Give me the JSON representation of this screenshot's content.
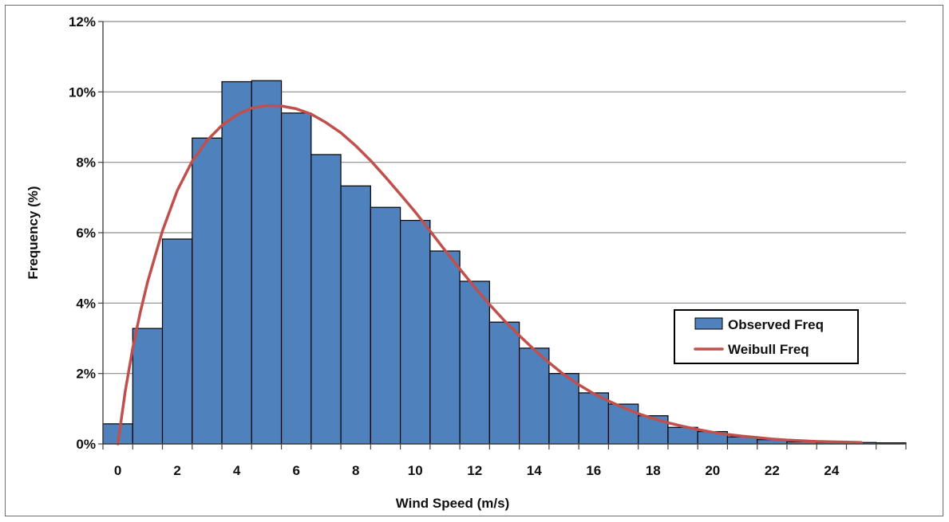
{
  "chart_data": {
    "type": "bar",
    "title": "",
    "xlabel": "Wind Speed (m/s)",
    "ylabel": "Frequency (%)",
    "xlim": [
      -0.5,
      26.5
    ],
    "ylim": [
      0,
      12
    ],
    "y_ticks": [
      0,
      2,
      4,
      6,
      8,
      10,
      12
    ],
    "y_tick_labels": [
      "0%",
      "2%",
      "4%",
      "6%",
      "8%",
      "10%",
      "12%"
    ],
    "x_ticks": [
      0,
      2,
      4,
      6,
      8,
      10,
      12,
      14,
      16,
      18,
      20,
      22,
      24
    ],
    "x_tick_labels": [
      "0",
      "2",
      "4",
      "6",
      "8",
      "10",
      "12",
      "14",
      "16",
      "18",
      "20",
      "22",
      "24"
    ],
    "grid": "horizontal",
    "legend_position": "right",
    "categories": [
      "0",
      "1",
      "2",
      "3",
      "4",
      "5",
      "6",
      "7",
      "8",
      "9",
      "10",
      "11",
      "12",
      "13",
      "14",
      "15",
      "16",
      "17",
      "18",
      "19",
      "20",
      "21",
      "22",
      "23",
      "24",
      "25",
      "26"
    ],
    "series": [
      {
        "name": "Observed Freq",
        "type": "bar",
        "color": "#4f81bd",
        "values": [
          0.57,
          3.28,
          5.82,
          8.69,
          10.29,
          10.32,
          9.4,
          8.22,
          7.33,
          6.72,
          6.35,
          5.48,
          4.62,
          3.46,
          2.72,
          2.0,
          1.45,
          1.13,
          0.8,
          0.47,
          0.35,
          0.2,
          0.12,
          0.06,
          0.04,
          0.04,
          0.03
        ]
      },
      {
        "name": "Weibull Freq",
        "type": "line",
        "color": "#c0504d",
        "x": [
          0,
          0.25,
          0.5,
          0.75,
          1,
          1.5,
          2,
          2.5,
          3,
          3.5,
          4,
          4.5,
          5,
          5.5,
          6,
          6.5,
          7,
          7.5,
          8,
          8.5,
          9,
          9.5,
          10,
          10.5,
          11,
          11.5,
          12,
          12.5,
          13,
          13.5,
          14,
          14.5,
          15,
          15.5,
          16,
          16.5,
          17,
          17.5,
          18,
          18.5,
          19,
          19.5,
          20,
          20.5,
          21,
          21.5,
          22,
          22.5,
          23,
          23.5,
          24,
          24.5,
          25
        ],
        "y": [
          0.0,
          1.5,
          2.72,
          3.72,
          4.6,
          6.05,
          7.2,
          8.03,
          8.62,
          9.05,
          9.35,
          9.54,
          9.61,
          9.6,
          9.52,
          9.37,
          9.13,
          8.84,
          8.47,
          8.05,
          7.58,
          7.09,
          6.59,
          6.05,
          5.5,
          4.97,
          4.45,
          3.96,
          3.5,
          3.08,
          2.68,
          2.31,
          1.97,
          1.68,
          1.43,
          1.22,
          1.03,
          0.86,
          0.72,
          0.6,
          0.5,
          0.41,
          0.33,
          0.27,
          0.22,
          0.18,
          0.14,
          0.11,
          0.09,
          0.07,
          0.06,
          0.05,
          0.04
        ]
      }
    ]
  }
}
